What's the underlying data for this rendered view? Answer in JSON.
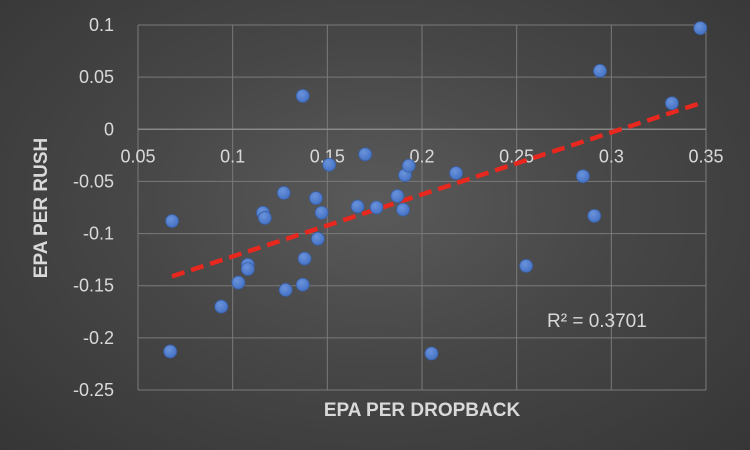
{
  "chart_data": {
    "type": "scatter",
    "title": "",
    "xlabel": "EPA PER DROPBACK",
    "ylabel": "EPA PER RUSH",
    "xlim": [
      0.05,
      0.35
    ],
    "ylim": [
      -0.25,
      0.1
    ],
    "x_ticks": [
      "0.05",
      "0.1",
      "0.15",
      "0.2",
      "0.25",
      "0.3",
      "0.35"
    ],
    "y_ticks": [
      "0.1",
      "0.05",
      "0",
      "-0.05",
      "-0.1",
      "-0.15",
      "-0.2",
      "-0.25"
    ],
    "grid": true,
    "legend": "none",
    "colors": {
      "point": "#4472c4",
      "trendline": "#e8281e",
      "grid": "#7a7a7a",
      "text": "#d9d9d9"
    },
    "series": [
      {
        "points": [
          [
            0.068,
            -0.088
          ],
          [
            0.067,
            -0.213
          ],
          [
            0.094,
            -0.17
          ],
          [
            0.103,
            -0.147
          ],
          [
            0.108,
            -0.13
          ],
          [
            0.108,
            -0.134
          ],
          [
            0.116,
            -0.08
          ],
          [
            0.117,
            -0.085
          ],
          [
            0.127,
            -0.061
          ],
          [
            0.128,
            -0.154
          ],
          [
            0.137,
            0.032
          ],
          [
            0.137,
            -0.149
          ],
          [
            0.138,
            -0.124
          ],
          [
            0.144,
            -0.066
          ],
          [
            0.145,
            -0.105
          ],
          [
            0.147,
            -0.08
          ],
          [
            0.151,
            -0.034
          ],
          [
            0.166,
            -0.074
          ],
          [
            0.17,
            -0.024
          ],
          [
            0.176,
            -0.075
          ],
          [
            0.187,
            -0.064
          ],
          [
            0.19,
            -0.077
          ],
          [
            0.191,
            -0.044
          ],
          [
            0.193,
            -0.035
          ],
          [
            0.205,
            -0.215
          ],
          [
            0.218,
            -0.042
          ],
          [
            0.255,
            -0.131
          ],
          [
            0.285,
            -0.045
          ],
          [
            0.291,
            -0.083
          ],
          [
            0.294,
            0.056
          ],
          [
            0.332,
            0.025
          ],
          [
            0.347,
            0.097
          ]
        ]
      }
    ],
    "trendline": {
      "type": "linear",
      "style": "dashed",
      "x": [
        0.068,
        0.347
      ],
      "y": [
        -0.141,
        0.025
      ]
    },
    "annotation": "R² = 0.3701"
  }
}
